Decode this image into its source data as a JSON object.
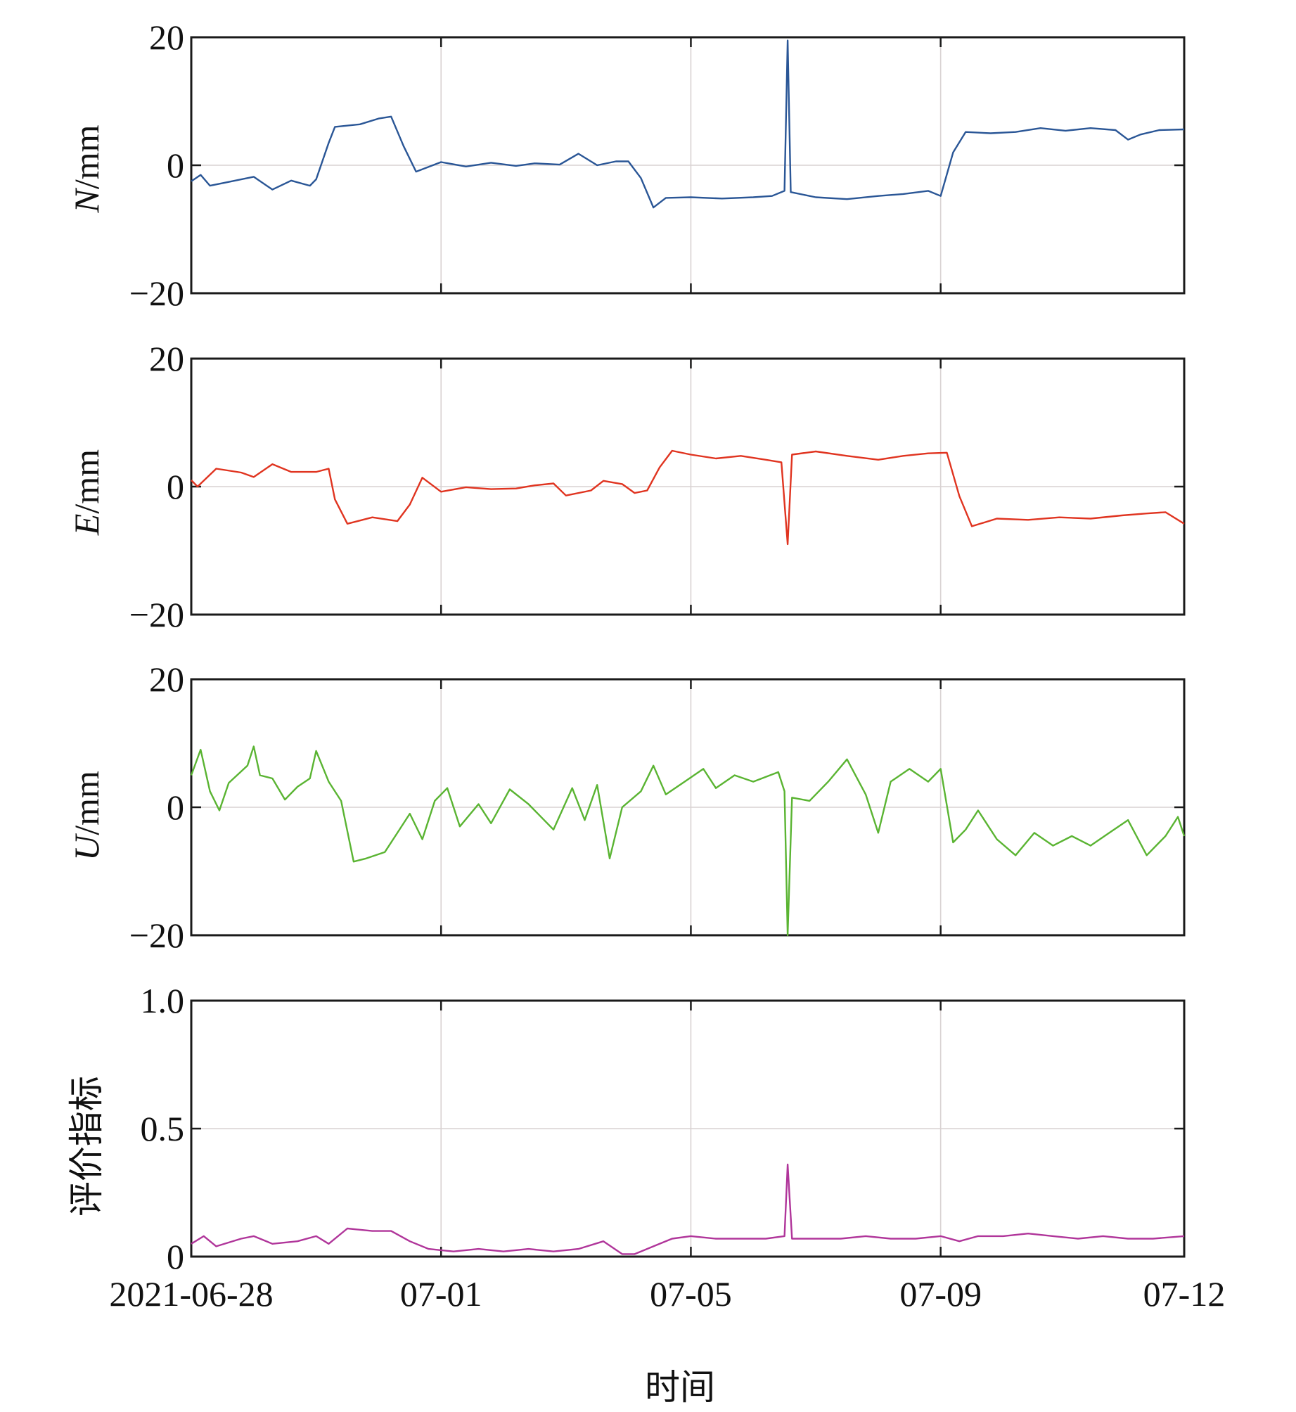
{
  "chart_data": [
    {
      "type": "line",
      "ylabel": "N/mm",
      "ylabel_italic": "N",
      "ylabel_unit": "/mm",
      "ylim": [
        -20,
        20
      ],
      "yticks": [
        "20",
        "0",
        "−20"
      ],
      "ytick_values": [
        20,
        0,
        -20
      ],
      "series": [
        {
          "name": "N",
          "color": "#2a5696",
          "points": [
            [
              0,
              -2.5
            ],
            [
              0.15,
              -1.5
            ],
            [
              0.3,
              -3.2
            ],
            [
              0.6,
              -2.6
            ],
            [
              1.0,
              -1.8
            ],
            [
              1.3,
              -3.8
            ],
            [
              1.6,
              -2.4
            ],
            [
              1.9,
              -3.2
            ],
            [
              2.0,
              -2.2
            ],
            [
              2.2,
              3.5
            ],
            [
              2.3,
              6.0
            ],
            [
              2.7,
              6.4
            ],
            [
              3.0,
              7.3
            ],
            [
              3.2,
              7.6
            ],
            [
              3.4,
              3.0
            ],
            [
              3.6,
              -1.0
            ],
            [
              4.0,
              0.5
            ],
            [
              4.4,
              -0.2
            ],
            [
              4.8,
              0.4
            ],
            [
              5.2,
              -0.1
            ],
            [
              5.5,
              0.3
            ],
            [
              5.9,
              0.1
            ],
            [
              6.2,
              1.8
            ],
            [
              6.5,
              0.0
            ],
            [
              6.8,
              0.6
            ],
            [
              7.0,
              0.6
            ],
            [
              7.2,
              -2.0
            ],
            [
              7.4,
              -6.6
            ],
            [
              7.6,
              -5.1
            ],
            [
              8.0,
              -5.0
            ],
            [
              8.5,
              -5.2
            ],
            [
              9.0,
              -5.0
            ],
            [
              9.3,
              -4.8
            ],
            [
              9.5,
              -4.0
            ],
            [
              9.55,
              19.5
            ],
            [
              9.6,
              -4.2
            ],
            [
              10.0,
              -5.0
            ],
            [
              10.5,
              -5.3
            ],
            [
              11.0,
              -4.8
            ],
            [
              11.4,
              -4.5
            ],
            [
              11.8,
              -4.0
            ],
            [
              12.0,
              -4.8
            ],
            [
              12.2,
              2.0
            ],
            [
              12.4,
              5.2
            ],
            [
              12.8,
              5.0
            ],
            [
              13.2,
              5.2
            ],
            [
              13.6,
              5.8
            ],
            [
              14.0,
              5.4
            ],
            [
              14.4,
              5.8
            ],
            [
              14.8,
              5.5
            ],
            [
              15.0,
              4.0
            ],
            [
              15.2,
              4.8
            ],
            [
              15.5,
              5.5
            ],
            [
              15.9,
              5.6
            ]
          ]
        }
      ]
    },
    {
      "type": "line",
      "ylabel": "E/mm",
      "ylabel_italic": "E",
      "ylabel_unit": "/mm",
      "ylim": [
        -20,
        20
      ],
      "yticks": [
        "20",
        "0",
        "−20"
      ],
      "ytick_values": [
        20,
        0,
        -20
      ],
      "series": [
        {
          "name": "E",
          "color": "#e03420",
          "points": [
            [
              0,
              1.0
            ],
            [
              0.1,
              0.0
            ],
            [
              0.4,
              2.8
            ],
            [
              0.8,
              2.2
            ],
            [
              1.0,
              1.5
            ],
            [
              1.3,
              3.5
            ],
            [
              1.6,
              2.3
            ],
            [
              2.0,
              2.3
            ],
            [
              2.2,
              2.8
            ],
            [
              2.3,
              -2.0
            ],
            [
              2.5,
              -5.8
            ],
            [
              2.9,
              -4.8
            ],
            [
              3.3,
              -5.4
            ],
            [
              3.5,
              -2.8
            ],
            [
              3.7,
              1.4
            ],
            [
              4.0,
              -0.8
            ],
            [
              4.4,
              -0.1
            ],
            [
              4.8,
              -0.4
            ],
            [
              5.2,
              -0.3
            ],
            [
              5.5,
              0.2
            ],
            [
              5.8,
              0.5
            ],
            [
              6.0,
              -1.4
            ],
            [
              6.4,
              -0.6
            ],
            [
              6.6,
              0.9
            ],
            [
              6.9,
              0.4
            ],
            [
              7.1,
              -1.0
            ],
            [
              7.3,
              -0.6
            ],
            [
              7.5,
              3.0
            ],
            [
              7.7,
              5.6
            ],
            [
              8.0,
              5.0
            ],
            [
              8.4,
              4.4
            ],
            [
              8.8,
              4.8
            ],
            [
              9.2,
              4.2
            ],
            [
              9.45,
              3.8
            ],
            [
              9.55,
              -9.0
            ],
            [
              9.62,
              5.0
            ],
            [
              10.0,
              5.5
            ],
            [
              10.5,
              4.8
            ],
            [
              11.0,
              4.2
            ],
            [
              11.4,
              4.8
            ],
            [
              11.8,
              5.2
            ],
            [
              12.1,
              5.3
            ],
            [
              12.3,
              -1.5
            ],
            [
              12.5,
              -6.2
            ],
            [
              12.9,
              -5.0
            ],
            [
              13.4,
              -5.2
            ],
            [
              13.9,
              -4.8
            ],
            [
              14.4,
              -5.0
            ],
            [
              14.9,
              -4.5
            ],
            [
              15.3,
              -4.2
            ],
            [
              15.6,
              -4.0
            ],
            [
              15.9,
              -5.8
            ]
          ]
        }
      ]
    },
    {
      "type": "line",
      "ylabel": "U/mm",
      "ylabel_italic": "U",
      "ylabel_unit": "/mm",
      "ylim": [
        -20,
        20
      ],
      "yticks": [
        "20",
        "0",
        "−20"
      ],
      "ytick_values": [
        20,
        0,
        -20
      ],
      "series": [
        {
          "name": "U",
          "color": "#5ab432",
          "points": [
            [
              0,
              5.0
            ],
            [
              0.15,
              9.0
            ],
            [
              0.3,
              2.5
            ],
            [
              0.45,
              -0.5
            ],
            [
              0.6,
              3.8
            ],
            [
              0.9,
              6.5
            ],
            [
              1.0,
              9.5
            ],
            [
              1.1,
              5.0
            ],
            [
              1.3,
              4.5
            ],
            [
              1.5,
              1.2
            ],
            [
              1.7,
              3.2
            ],
            [
              1.9,
              4.5
            ],
            [
              2.0,
              8.8
            ],
            [
              2.2,
              4.0
            ],
            [
              2.4,
              1.0
            ],
            [
              2.6,
              -8.5
            ],
            [
              2.8,
              -8.0
            ],
            [
              3.1,
              -7.0
            ],
            [
              3.3,
              -4.0
            ],
            [
              3.5,
              -1.0
            ],
            [
              3.7,
              -5.0
            ],
            [
              3.9,
              1.0
            ],
            [
              4.1,
              3.0
            ],
            [
              4.3,
              -3.0
            ],
            [
              4.6,
              0.5
            ],
            [
              4.8,
              -2.5
            ],
            [
              5.1,
              2.8
            ],
            [
              5.4,
              0.5
            ],
            [
              5.8,
              -3.5
            ],
            [
              6.1,
              3.0
            ],
            [
              6.3,
              -2.0
            ],
            [
              6.5,
              3.5
            ],
            [
              6.7,
              -8.0
            ],
            [
              6.9,
              0.0
            ],
            [
              7.2,
              2.5
            ],
            [
              7.4,
              6.5
            ],
            [
              7.6,
              2.0
            ],
            [
              7.9,
              4.0
            ],
            [
              8.2,
              6.0
            ],
            [
              8.4,
              3.0
            ],
            [
              8.7,
              5.0
            ],
            [
              9.0,
              4.0
            ],
            [
              9.4,
              5.5
            ],
            [
              9.5,
              2.5
            ],
            [
              9.55,
              -20.0
            ],
            [
              9.62,
              1.5
            ],
            [
              9.9,
              1.0
            ],
            [
              10.2,
              4.0
            ],
            [
              10.5,
              7.5
            ],
            [
              10.8,
              2.0
            ],
            [
              11.0,
              -4.0
            ],
            [
              11.2,
              4.0
            ],
            [
              11.5,
              6.0
            ],
            [
              11.8,
              4.0
            ],
            [
              12.0,
              6.0
            ],
            [
              12.2,
              -5.5
            ],
            [
              12.4,
              -3.5
            ],
            [
              12.6,
              -0.5
            ],
            [
              12.9,
              -5.0
            ],
            [
              13.2,
              -7.5
            ],
            [
              13.5,
              -4.0
            ],
            [
              13.8,
              -6.0
            ],
            [
              14.1,
              -4.5
            ],
            [
              14.4,
              -6.0
            ],
            [
              14.7,
              -4.0
            ],
            [
              15.0,
              -2.0
            ],
            [
              15.3,
              -7.5
            ],
            [
              15.6,
              -4.5
            ],
            [
              15.8,
              -1.5
            ],
            [
              15.9,
              -4.5
            ]
          ]
        }
      ]
    },
    {
      "type": "line",
      "ylabel": "评价指标",
      "ylabel_italic": "",
      "ylabel_unit": "评价指标",
      "ylim": [
        0,
        1.0
      ],
      "yticks": [
        "1.0",
        "0.5",
        "0"
      ],
      "ytick_values": [
        1.0,
        0.5,
        0
      ],
      "xlabel": "时间",
      "xticks": [
        "2021-06-28",
        "07-01",
        "07-05",
        "07-09",
        "07-12"
      ],
      "xtick_values": [
        0,
        4,
        8,
        12,
        15.9
      ],
      "series": [
        {
          "name": "评价指标",
          "color": "#b0359a",
          "points": [
            [
              0,
              0.05
            ],
            [
              0.2,
              0.08
            ],
            [
              0.4,
              0.04
            ],
            [
              0.8,
              0.07
            ],
            [
              1.0,
              0.08
            ],
            [
              1.3,
              0.05
            ],
            [
              1.7,
              0.06
            ],
            [
              2.0,
              0.08
            ],
            [
              2.2,
              0.05
            ],
            [
              2.5,
              0.11
            ],
            [
              2.9,
              0.1
            ],
            [
              3.2,
              0.1
            ],
            [
              3.5,
              0.06
            ],
            [
              3.8,
              0.03
            ],
            [
              4.2,
              0.02
            ],
            [
              4.6,
              0.03
            ],
            [
              5.0,
              0.02
            ],
            [
              5.4,
              0.03
            ],
            [
              5.8,
              0.02
            ],
            [
              6.2,
              0.03
            ],
            [
              6.6,
              0.06
            ],
            [
              6.9,
              0.01
            ],
            [
              7.1,
              0.01
            ],
            [
              7.4,
              0.04
            ],
            [
              7.7,
              0.07
            ],
            [
              8.0,
              0.08
            ],
            [
              8.4,
              0.07
            ],
            [
              8.8,
              0.07
            ],
            [
              9.2,
              0.07
            ],
            [
              9.5,
              0.08
            ],
            [
              9.55,
              0.36
            ],
            [
              9.62,
              0.07
            ],
            [
              10.0,
              0.07
            ],
            [
              10.4,
              0.07
            ],
            [
              10.8,
              0.08
            ],
            [
              11.2,
              0.07
            ],
            [
              11.6,
              0.07
            ],
            [
              12.0,
              0.08
            ],
            [
              12.3,
              0.06
            ],
            [
              12.6,
              0.08
            ],
            [
              13.0,
              0.08
            ],
            [
              13.4,
              0.09
            ],
            [
              13.8,
              0.08
            ],
            [
              14.2,
              0.07
            ],
            [
              14.6,
              0.08
            ],
            [
              15.0,
              0.07
            ],
            [
              15.4,
              0.07
            ],
            [
              15.9,
              0.08
            ]
          ]
        }
      ]
    }
  ]
}
